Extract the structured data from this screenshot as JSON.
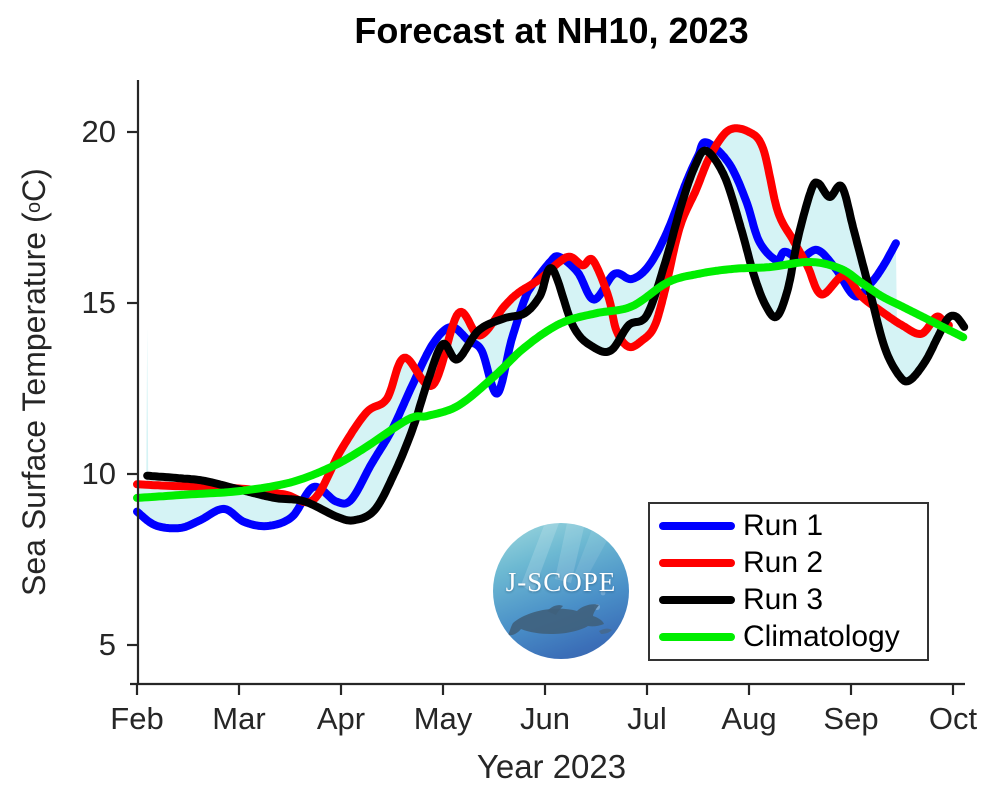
{
  "figure": {
    "title": "Forecast at NH10, 2023"
  },
  "axes": {
    "xlabel": "Year 2023",
    "ylabel_prefix": "Sea Surface Temperature (",
    "ylabel_sup": "o",
    "ylabel_suffix": "C)",
    "x_tick_labels": [
      "Feb",
      "Mar",
      "Apr",
      "May",
      "Jun",
      "Jul",
      "Aug",
      "Sep",
      "Oct"
    ],
    "y_tick_labels": [
      "20",
      "15",
      "10",
      "5"
    ]
  },
  "legend": {
    "items": [
      {
        "label": "Run 1",
        "color": "#0000ff"
      },
      {
        "label": "Run 2",
        "color": "#ff0000"
      },
      {
        "label": "Run 3",
        "color": "#000000"
      },
      {
        "label": "Climatology",
        "color": "#00ee00"
      }
    ]
  },
  "logo": {
    "text": "J-SCOPE"
  },
  "chart_data": {
    "type": "line",
    "title": "Forecast at NH10, 2023",
    "xlabel": "Year 2023",
    "ylabel": "Sea Surface Temperature (°C)",
    "x_axis": {
      "unit": "month of 2023 (2 = Feb 1, 10 = Oct 1)",
      "ticks": [
        2,
        3,
        4,
        5,
        6,
        7,
        8,
        9,
        10
      ],
      "tick_labels": [
        "Feb",
        "Mar",
        "Apr",
        "May",
        "Jun",
        "Jul",
        "Aug",
        "Sep",
        "Oct"
      ],
      "range": [
        2,
        10.15
      ]
    },
    "y_axis": {
      "unit": "°C",
      "ticks": [
        5,
        10,
        15,
        20
      ],
      "range": [
        3.9,
        21.5
      ]
    },
    "grid": false,
    "legend_position": "lower-right inside axes",
    "envelope_fill": {
      "color": "#d5f3f5",
      "between": [
        "Run 1",
        "Run 2",
        "Run 3"
      ],
      "description": "pale cyan shading spans the min-max envelope of the three forecast runs"
    },
    "series": [
      {
        "name": "Run 1",
        "color": "#0000ff",
        "role": "run",
        "points": [
          [
            2.0,
            8.9
          ],
          [
            2.18,
            8.5
          ],
          [
            2.42,
            8.42
          ],
          [
            2.62,
            8.65
          ],
          [
            2.85,
            8.98
          ],
          [
            3.05,
            8.6
          ],
          [
            3.28,
            8.48
          ],
          [
            3.52,
            8.75
          ],
          [
            3.73,
            9.62
          ],
          [
            3.95,
            9.2
          ],
          [
            4.1,
            9.25
          ],
          [
            4.3,
            10.3
          ],
          [
            4.5,
            11.3
          ],
          [
            4.7,
            12.6
          ],
          [
            4.9,
            13.8
          ],
          [
            5.08,
            14.3
          ],
          [
            5.25,
            13.9
          ],
          [
            5.38,
            13.6
          ],
          [
            5.53,
            12.35
          ],
          [
            5.67,
            13.9
          ],
          [
            5.8,
            15.1
          ],
          [
            5.87,
            15.5
          ],
          [
            6.05,
            16.2
          ],
          [
            6.14,
            16.35
          ],
          [
            6.32,
            15.9
          ],
          [
            6.48,
            15.1
          ],
          [
            6.68,
            15.85
          ],
          [
            6.85,
            15.7
          ],
          [
            7.02,
            16.1
          ],
          [
            7.2,
            17.1
          ],
          [
            7.38,
            18.5
          ],
          [
            7.5,
            19.3
          ],
          [
            7.58,
            19.7
          ],
          [
            7.8,
            19.1
          ],
          [
            7.97,
            18.0
          ],
          [
            8.1,
            16.8
          ],
          [
            8.27,
            16.25
          ],
          [
            8.35,
            16.5
          ],
          [
            8.5,
            16.3
          ],
          [
            8.67,
            16.55
          ],
          [
            8.85,
            16.0
          ],
          [
            9.04,
            15.2
          ],
          [
            9.2,
            15.6
          ],
          [
            9.32,
            16.1
          ],
          [
            9.44,
            16.75
          ]
        ]
      },
      {
        "name": "Run 2",
        "color": "#ff0000",
        "role": "run",
        "points": [
          [
            2.0,
            9.7
          ],
          [
            2.35,
            9.65
          ],
          [
            2.75,
            9.62
          ],
          [
            3.1,
            9.55
          ],
          [
            3.45,
            9.4
          ],
          [
            3.73,
            9.25
          ],
          [
            4.0,
            10.7
          ],
          [
            4.25,
            11.8
          ],
          [
            4.45,
            12.2
          ],
          [
            4.62,
            13.4
          ],
          [
            4.9,
            12.6
          ],
          [
            5.15,
            14.7
          ],
          [
            5.36,
            14.05
          ],
          [
            5.6,
            14.9
          ],
          [
            5.74,
            15.3
          ],
          [
            5.95,
            15.7
          ],
          [
            6.14,
            16.2
          ],
          [
            6.25,
            16.35
          ],
          [
            6.37,
            16.1
          ],
          [
            6.47,
            16.25
          ],
          [
            6.62,
            15.2
          ],
          [
            6.7,
            14.2
          ],
          [
            6.82,
            13.72
          ],
          [
            6.95,
            13.9
          ],
          [
            7.07,
            14.3
          ],
          [
            7.17,
            15.3
          ],
          [
            7.32,
            17.2
          ],
          [
            7.48,
            18.3
          ],
          [
            7.62,
            19.3
          ],
          [
            7.8,
            20.05
          ],
          [
            8.0,
            20.0
          ],
          [
            8.14,
            19.5
          ],
          [
            8.28,
            17.7
          ],
          [
            8.43,
            16.85
          ],
          [
            8.57,
            16.1
          ],
          [
            8.71,
            15.25
          ],
          [
            8.93,
            15.8
          ],
          [
            9.1,
            15.2
          ],
          [
            9.3,
            14.75
          ],
          [
            9.5,
            14.35
          ],
          [
            9.69,
            14.1
          ],
          [
            9.84,
            14.6
          ],
          [
            9.93,
            14.35
          ],
          [
            9.96,
            14.35
          ]
        ]
      },
      {
        "name": "Run 3",
        "color": "#000000",
        "role": "run",
        "points": [
          [
            2.1,
            9.95
          ],
          [
            2.4,
            9.88
          ],
          [
            2.66,
            9.8
          ],
          [
            3.0,
            9.55
          ],
          [
            3.35,
            9.3
          ],
          [
            3.64,
            9.2
          ],
          [
            3.96,
            8.75
          ],
          [
            4.13,
            8.65
          ],
          [
            4.33,
            8.95
          ],
          [
            4.52,
            10.0
          ],
          [
            4.7,
            11.3
          ],
          [
            4.86,
            12.8
          ],
          [
            5.0,
            13.8
          ],
          [
            5.14,
            13.35
          ],
          [
            5.35,
            14.2
          ],
          [
            5.6,
            14.55
          ],
          [
            5.8,
            14.7
          ],
          [
            5.95,
            15.2
          ],
          [
            6.07,
            16.0
          ],
          [
            6.28,
            14.3
          ],
          [
            6.48,
            13.7
          ],
          [
            6.65,
            13.62
          ],
          [
            6.82,
            14.35
          ],
          [
            7.0,
            14.65
          ],
          [
            7.18,
            16.2
          ],
          [
            7.34,
            17.9
          ],
          [
            7.47,
            19.0
          ],
          [
            7.58,
            19.45
          ],
          [
            7.76,
            18.7
          ],
          [
            7.92,
            17.2
          ],
          [
            8.05,
            15.8
          ],
          [
            8.16,
            14.95
          ],
          [
            8.27,
            14.6
          ],
          [
            8.38,
            15.4
          ],
          [
            8.48,
            16.9
          ],
          [
            8.61,
            18.3
          ],
          [
            8.68,
            18.5
          ],
          [
            8.79,
            18.1
          ],
          [
            8.91,
            18.4
          ],
          [
            9.03,
            17.1
          ],
          [
            9.18,
            15.4
          ],
          [
            9.33,
            13.7
          ],
          [
            9.48,
            12.85
          ],
          [
            9.58,
            12.75
          ],
          [
            9.73,
            13.3
          ],
          [
            9.85,
            14.0
          ],
          [
            9.95,
            14.55
          ],
          [
            10.03,
            14.6
          ],
          [
            10.11,
            14.3
          ]
        ]
      },
      {
        "name": "Climatology",
        "color": "#00ee00",
        "role": "climatology",
        "points": [
          [
            2.0,
            9.3
          ],
          [
            2.5,
            9.4
          ],
          [
            3.0,
            9.5
          ],
          [
            3.5,
            9.75
          ],
          [
            3.9,
            10.2
          ],
          [
            4.2,
            10.7
          ],
          [
            4.66,
            11.6
          ],
          [
            4.85,
            11.7
          ],
          [
            5.15,
            12.0
          ],
          [
            5.5,
            12.85
          ],
          [
            5.8,
            13.7
          ],
          [
            6.15,
            14.4
          ],
          [
            6.5,
            14.7
          ],
          [
            6.85,
            14.9
          ],
          [
            7.2,
            15.6
          ],
          [
            7.5,
            15.85
          ],
          [
            7.85,
            16.0
          ],
          [
            8.2,
            16.05
          ],
          [
            8.6,
            16.2
          ],
          [
            8.9,
            16.0
          ],
          [
            9.1,
            15.6
          ],
          [
            9.3,
            15.2
          ],
          [
            9.5,
            14.9
          ],
          [
            9.7,
            14.6
          ],
          [
            9.9,
            14.3
          ],
          [
            10.1,
            14.0
          ]
        ]
      }
    ]
  }
}
